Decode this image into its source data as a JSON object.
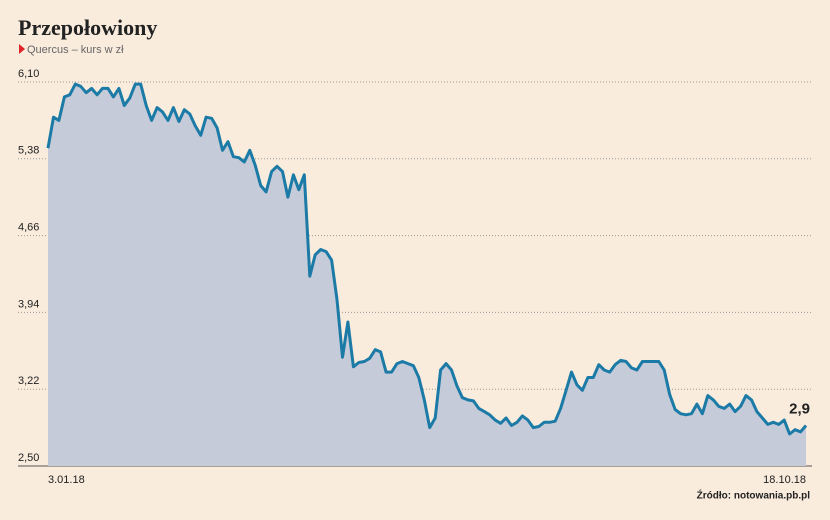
{
  "chart_data": {
    "type": "area-line",
    "title": "Przepołowiony",
    "subtitle": "Quercus – kurs w zł",
    "source": "Źródło: notowania.pb.pl",
    "color": "#1b7ba6",
    "fill": "#c6cbd9",
    "grid": true,
    "ylim": [
      2.5,
      6.1
    ],
    "yticks": [
      {
        "value": 2.5,
        "label": "2,50"
      },
      {
        "value": 3.22,
        "label": "3,22"
      },
      {
        "value": 3.94,
        "label": "3,94"
      },
      {
        "value": 4.66,
        "label": "4,66"
      },
      {
        "value": 5.38,
        "label": "5,38"
      },
      {
        "value": 6.1,
        "label": "6,10"
      }
    ],
    "categories": [
      "3.01.18",
      null,
      null,
      null,
      null,
      null,
      null,
      null,
      null,
      null,
      null,
      null,
      null,
      null,
      null,
      null,
      null,
      null,
      null,
      null,
      null,
      null,
      null,
      null,
      null,
      null,
      null,
      null,
      null,
      null,
      null,
      null,
      null,
      null,
      null,
      null,
      null,
      null,
      null,
      null,
      null,
      null,
      null,
      null,
      null,
      null,
      null,
      null,
      null,
      null,
      null,
      null,
      null,
      null,
      null,
      null,
      null,
      null,
      null,
      null,
      null,
      null,
      null,
      null,
      null,
      null,
      null,
      null,
      null,
      null,
      null,
      null,
      null,
      null,
      null,
      null,
      null,
      null,
      null,
      null,
      null,
      null,
      null,
      null,
      null,
      null,
      null,
      null,
      null,
      null,
      null,
      null,
      null,
      null,
      null,
      null,
      null,
      null,
      null,
      null,
      null,
      null,
      null,
      null,
      null,
      null,
      null,
      null,
      null,
      null,
      null,
      null,
      null,
      null,
      null,
      null,
      null,
      null,
      null,
      null,
      null,
      null,
      null,
      null,
      null,
      null,
      null,
      null,
      null,
      null,
      null,
      null,
      null,
      null,
      null,
      null,
      null,
      null,
      null,
      "18.10.18"
    ],
    "values": [
      5.48,
      5.77,
      5.74,
      5.96,
      5.98,
      6.08,
      6.06,
      6.0,
      6.04,
      5.98,
      6.04,
      6.04,
      5.96,
      6.04,
      5.88,
      5.95,
      6.08,
      6.08,
      5.88,
      5.74,
      5.86,
      5.82,
      5.74,
      5.86,
      5.73,
      5.84,
      5.8,
      5.69,
      5.6,
      5.77,
      5.76,
      5.67,
      5.46,
      5.54,
      5.4,
      5.39,
      5.35,
      5.46,
      5.32,
      5.13,
      5.07,
      5.26,
      5.31,
      5.26,
      5.02,
      5.23,
      5.09,
      5.23,
      4.28,
      4.48,
      4.53,
      4.51,
      4.43,
      4.06,
      3.52,
      3.85,
      3.43,
      3.47,
      3.48,
      3.51,
      3.59,
      3.57,
      3.38,
      3.38,
      3.46,
      3.48,
      3.46,
      3.44,
      3.33,
      3.12,
      2.86,
      2.95,
      3.4,
      3.46,
      3.4,
      3.25,
      3.14,
      3.12,
      3.11,
      3.04,
      3.01,
      2.98,
      2.93,
      2.9,
      2.95,
      2.88,
      2.91,
      2.97,
      2.93,
      2.86,
      2.87,
      2.91,
      2.91,
      2.92,
      3.04,
      3.21,
      3.38,
      3.26,
      3.21,
      3.33,
      3.33,
      3.45,
      3.4,
      3.38,
      3.45,
      3.49,
      3.48,
      3.42,
      3.4,
      3.48,
      3.48,
      3.48,
      3.48,
      3.4,
      3.17,
      3.03,
      2.99,
      2.98,
      2.99,
      3.08,
      2.99,
      3.16,
      3.12,
      3.06,
      3.04,
      3.08,
      3.01,
      3.06,
      3.16,
      3.12,
      3.01,
      2.95,
      2.89,
      2.91,
      2.89,
      2.93,
      2.8,
      2.84,
      2.82,
      2.88
    ],
    "value_labels": [
      null,
      null,
      null,
      null,
      null,
      null,
      null,
      null,
      null,
      null,
      null,
      null,
      null,
      null,
      null,
      null,
      null,
      null,
      null,
      null,
      null,
      null,
      null,
      null,
      null,
      null,
      null,
      null,
      null,
      null,
      null,
      null,
      null,
      null,
      null,
      null,
      null,
      null,
      null,
      null,
      null,
      null,
      null,
      null,
      null,
      null,
      null,
      null,
      null,
      null,
      null,
      null,
      null,
      null,
      null,
      null,
      null,
      null,
      null,
      null,
      null,
      null,
      null,
      null,
      null,
      null,
      null,
      null,
      null,
      null,
      null,
      null,
      null,
      null,
      null,
      null,
      null,
      null,
      null,
      null,
      null,
      null,
      null,
      null,
      null,
      null,
      null,
      null,
      null,
      null,
      null,
      null,
      null,
      null,
      null,
      null,
      null,
      null,
      null,
      null,
      null,
      null,
      null,
      null,
      null,
      null,
      null,
      null,
      null,
      null,
      null,
      null,
      null,
      null,
      null,
      null,
      null,
      null,
      null,
      null,
      null,
      null,
      null,
      null,
      null,
      null,
      null,
      null,
      null,
      null,
      null,
      null,
      null,
      null,
      null,
      null,
      null,
      null,
      null,
      "2,9"
    ]
  }
}
